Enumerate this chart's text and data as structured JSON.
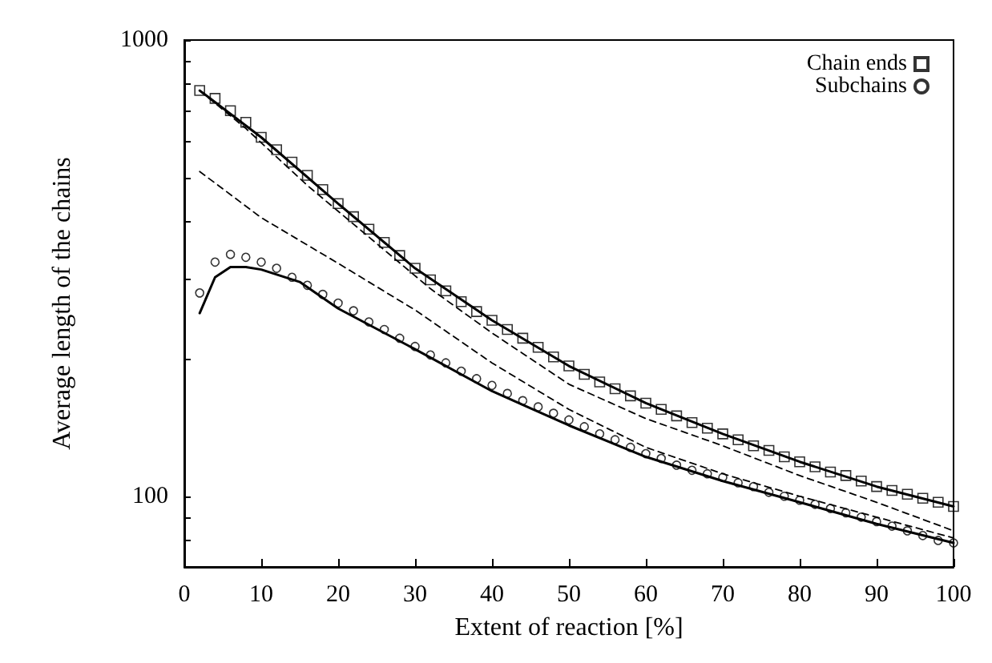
{
  "chart_data": {
    "type": "scatter",
    "xlabel": "Extent of reaction [%]",
    "ylabel": "Average length of the chains",
    "log": "y",
    "grid": false,
    "legend": "top right",
    "xlim": [
      0,
      100
    ],
    "xticks": [
      0,
      10,
      20,
      30,
      40,
      50,
      60,
      70,
      80,
      90,
      100
    ],
    "ylim": [
      70,
      1000
    ],
    "yticks": [
      {
        "value": 80,
        "label": null
      },
      {
        "value": 90,
        "label": null
      },
      100,
      {
        "value": 200,
        "label": null
      },
      {
        "value": 300,
        "label": null
      },
      {
        "value": 400,
        "label": null
      },
      {
        "value": 500,
        "label": null
      },
      {
        "value": 600,
        "label": null
      },
      {
        "value": 700,
        "label": null
      },
      {
        "value": 800,
        "label": null
      },
      {
        "value": 900,
        "label": null
      },
      1000
    ],
    "series": [
      {
        "name": "Chain ends",
        "marker": "square",
        "color": "#000000",
        "x": [
          2,
          4,
          6,
          8,
          10,
          12,
          14,
          16,
          18,
          20,
          22,
          24,
          26,
          28,
          30,
          32,
          34,
          36,
          38,
          40,
          42,
          44,
          46,
          48,
          50,
          52,
          54,
          56,
          58,
          60,
          62,
          64,
          66,
          68,
          70,
          72,
          74,
          76,
          78,
          80,
          82,
          84,
          86,
          88,
          90,
          92,
          94,
          96,
          98,
          100
        ],
        "values": [
          775,
          745,
          700,
          660,
          612,
          575,
          540,
          505,
          470,
          438,
          410,
          385,
          360,
          337,
          316,
          298,
          282,
          267,
          254,
          243,
          232,
          222,
          212,
          202,
          193,
          185,
          178,
          172,
          166,
          160,
          155,
          150,
          145,
          141,
          137,
          133,
          129,
          126,
          122,
          119,
          116,
          113,
          111,
          108,
          105,
          103,
          101,
          99,
          97,
          95
        ]
      },
      {
        "name": "Subchains",
        "marker": "circle",
        "color": "#000000",
        "x": [
          2,
          4,
          6,
          8,
          10,
          12,
          14,
          16,
          18,
          20,
          22,
          24,
          26,
          28,
          30,
          32,
          34,
          36,
          38,
          40,
          42,
          44,
          46,
          48,
          50,
          52,
          54,
          56,
          58,
          60,
          62,
          64,
          66,
          68,
          70,
          72,
          74,
          76,
          78,
          80,
          82,
          84,
          86,
          88,
          90,
          92,
          94,
          96,
          98,
          100
        ],
        "values": [
          279,
          326,
          339,
          334,
          326,
          316,
          302,
          290,
          277,
          265,
          255,
          241,
          232,
          222,
          213,
          204,
          196,
          188,
          181,
          175,
          168,
          162,
          157,
          152,
          147,
          142,
          137,
          133,
          128,
          124,
          121,
          117,
          114,
          112,
          110,
          107,
          105,
          102,
          100,
          98,
          96,
          94,
          92,
          90,
          88,
          86,
          84,
          82,
          80,
          79
        ]
      },
      {
        "type": "line",
        "marker": "none",
        "line_style": "solid",
        "color": "#000000",
        "x": [
          2,
          10,
          20,
          30,
          40,
          50,
          60,
          70,
          80,
          90,
          100
        ],
        "values": [
          775,
          612,
          438,
          316,
          243,
          193,
          160,
          137,
          119,
          105,
          95
        ]
      },
      {
        "type": "line",
        "marker": "none",
        "line_style": "solid",
        "color": "#000000",
        "x": [
          2,
          4,
          6,
          8,
          10,
          15,
          20,
          30,
          40,
          50,
          60,
          70,
          80,
          90,
          100
        ],
        "values": [
          252,
          302,
          318,
          318,
          314,
          295,
          258,
          210,
          170,
          143,
          122,
          108,
          97,
          87,
          79
        ]
      },
      {
        "type": "line",
        "marker": "none",
        "line_style": "dashed",
        "color": "#000000",
        "x": [
          2,
          8,
          16,
          24,
          32,
          40,
          50,
          60,
          70,
          80,
          90,
          100
        ],
        "values": [
          775,
          640,
          480,
          370,
          285,
          228,
          176,
          148,
          129,
          111,
          97,
          84
        ]
      },
      {
        "type": "line",
        "marker": "none",
        "line_style": "dashed",
        "color": "#000000",
        "x": [
          2,
          10,
          20,
          30,
          40,
          50,
          60,
          70,
          80,
          90,
          100
        ],
        "values": [
          515,
          408,
          324,
          256,
          196,
          155,
          128,
          112,
          100,
          90,
          81
        ]
      }
    ]
  }
}
